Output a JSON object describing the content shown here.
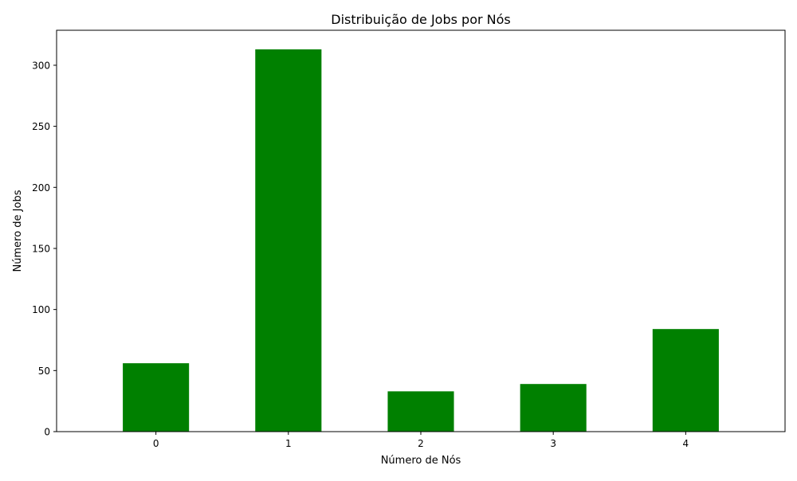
{
  "chart_data": {
    "type": "bar",
    "title": "Distribuição de Jobs por Nós",
    "xlabel": "Número de Nós",
    "ylabel": "Número de Jobs",
    "categories": [
      "0",
      "1",
      "2",
      "3",
      "4"
    ],
    "values": [
      56,
      313,
      33,
      39,
      84
    ],
    "ylim": [
      0,
      328.65
    ],
    "yticks": [
      0,
      50,
      100,
      150,
      200,
      250,
      300
    ],
    "bar_color": "#008000",
    "grid": false,
    "legend": "none"
  }
}
